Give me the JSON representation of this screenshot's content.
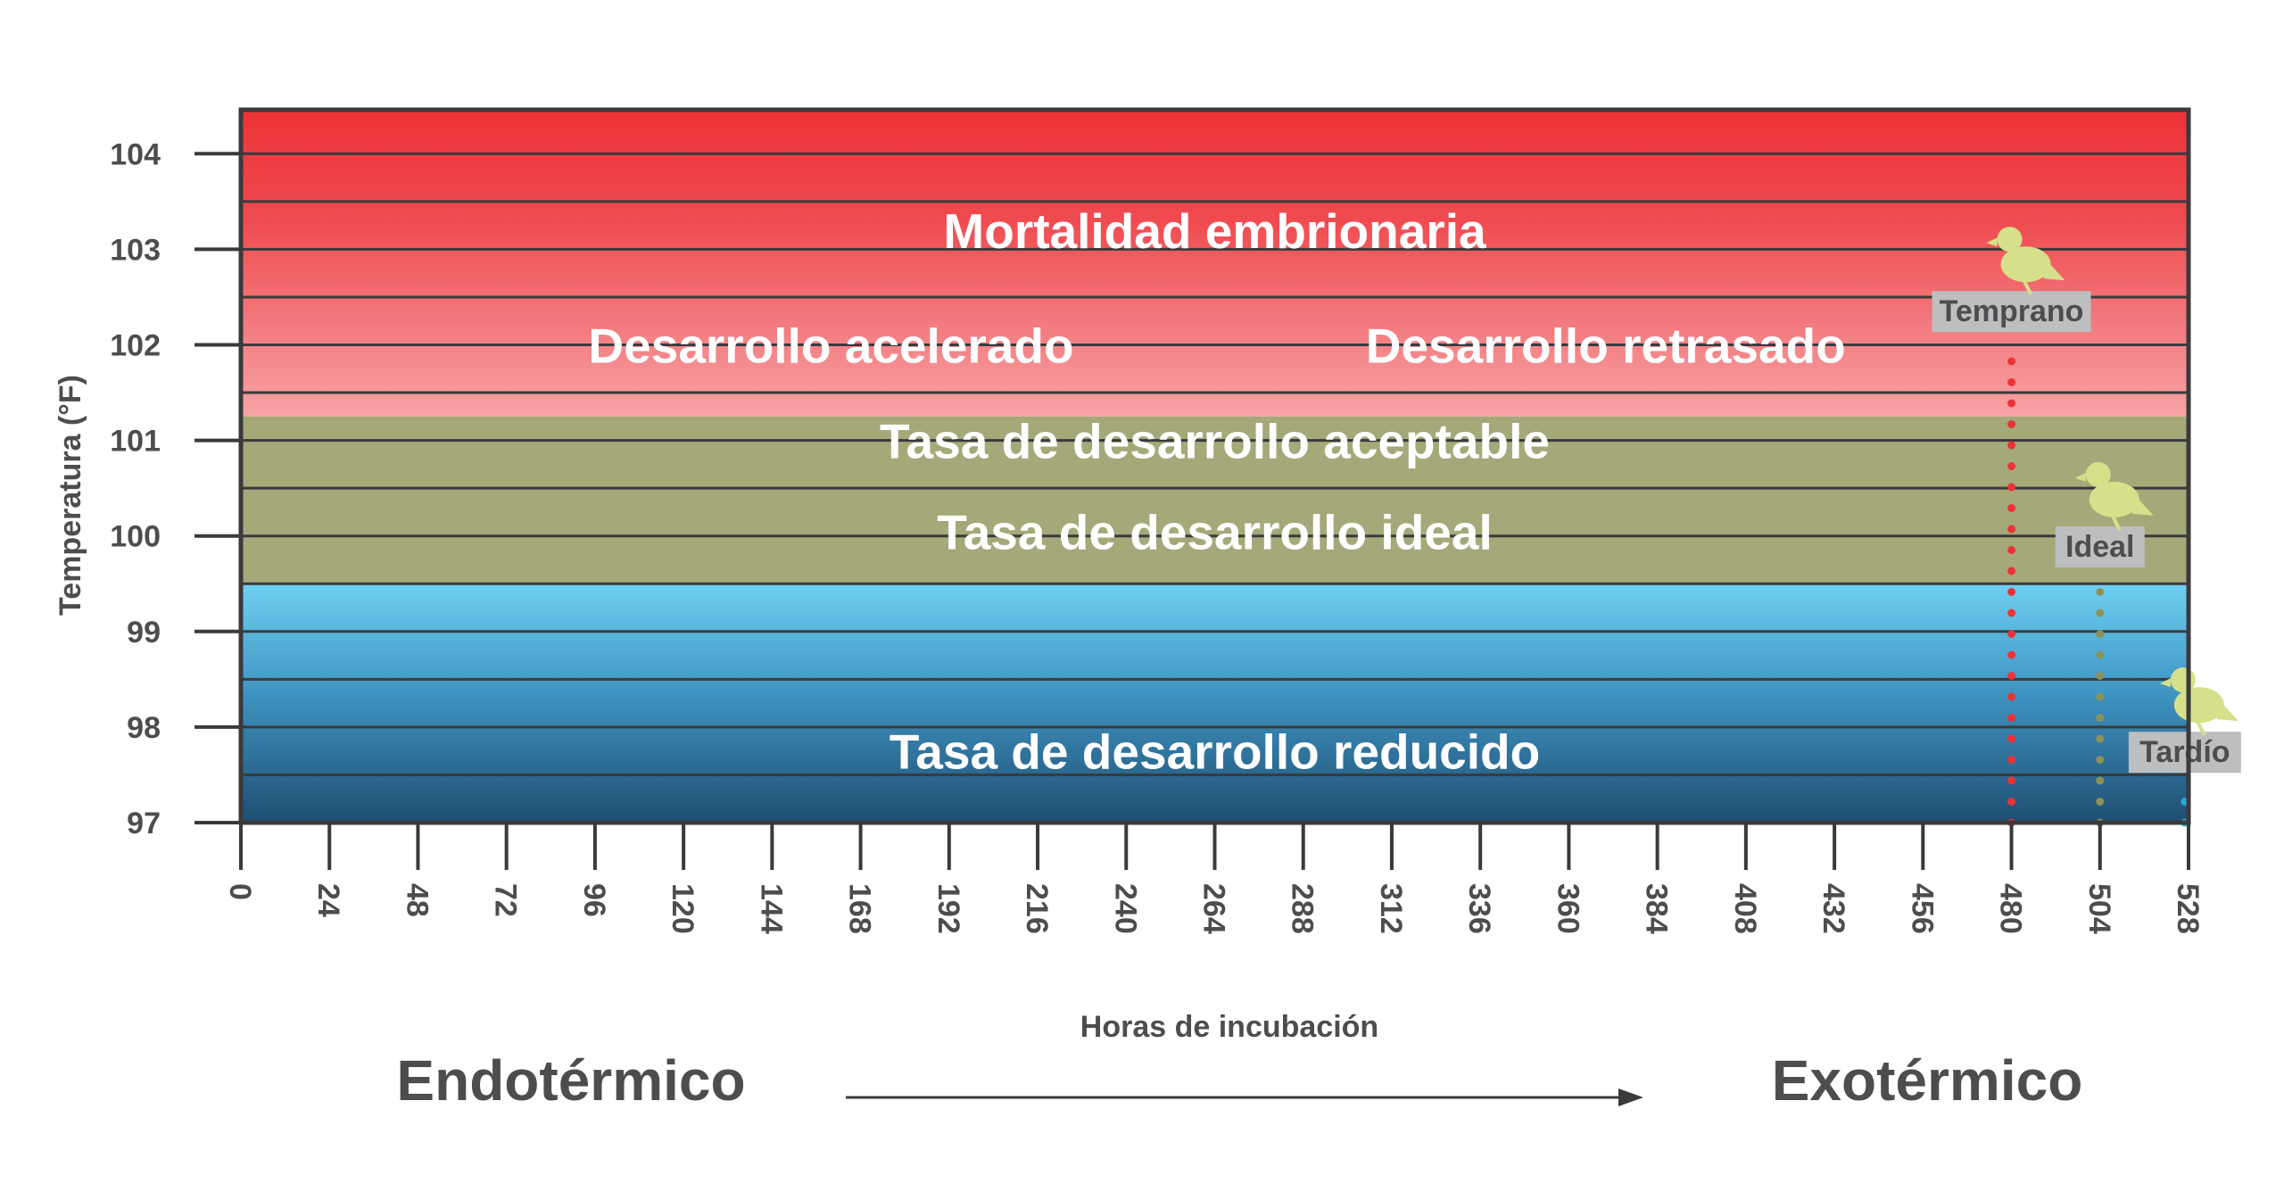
{
  "chart_data": {
    "type": "line",
    "xlabel": "Horas de incubación",
    "ylabel": "Temperatura (°F)",
    "xlim": [
      0,
      528
    ],
    "ylim": [
      97,
      104.5
    ],
    "x_ticks": [
      0,
      24,
      48,
      72,
      96,
      120,
      144,
      168,
      192,
      216,
      240,
      264,
      288,
      312,
      336,
      360,
      384,
      408,
      432,
      456,
      480,
      504,
      528
    ],
    "y_ticks": [
      97,
      98,
      99,
      100,
      101,
      102,
      103,
      104
    ],
    "grid": true,
    "zones": [
      {
        "label": "Mortalidad embrionaria",
        "y_from": 102.5,
        "y_to": 104.5,
        "color": "#ec3237",
        "label_x": 264,
        "label_y": 103.2
      },
      {
        "label": "Desarrollo acelerado",
        "y_from": 101.25,
        "y_to": 102.5,
        "color": "#f5999c",
        "label_x": 160,
        "label_y": 102
      },
      {
        "label": "Desarrollo retrasado",
        "y_from": 101.25,
        "y_to": 102.5,
        "color": "#f5999c",
        "label_x": 370,
        "label_y": 102
      },
      {
        "label": "Tasa de desarrollo aceptable",
        "y_from": 100.5,
        "y_to": 101.25,
        "color": "#a5a878",
        "label_x": 264,
        "label_y": 101
      },
      {
        "label": "Tasa de desarrollo ideal",
        "y_from": 99.5,
        "y_to": 100.5,
        "color": "#a5a878",
        "label_x": 264,
        "label_y": 100.05
      },
      {
        "label": "Tasa de desarrollo reducido",
        "y_from": 97,
        "y_to": 99.5,
        "color": "#3d8bb5",
        "label_x": 264,
        "label_y": 97.75
      }
    ],
    "series": [
      {
        "name": "Temprano",
        "x": 480,
        "y_from": 97,
        "y_to": 101.9,
        "color": "#ec3237"
      },
      {
        "name": "Ideal",
        "x": 504,
        "y_from": 97,
        "y_to": 99.55,
        "color": "#8e9157"
      },
      {
        "name": "Tardío",
        "x": 527,
        "y_from": 97,
        "y_to": 97.4,
        "color": "#29a8e0"
      }
    ],
    "annotations": {
      "left": "Endotérmico",
      "right": "Exotérmico"
    },
    "colors": {
      "axis": "#3a3a3c",
      "text": "#4d4d4f",
      "chick": "#d6e08a",
      "tag_bg": "#bcbec0"
    }
  }
}
